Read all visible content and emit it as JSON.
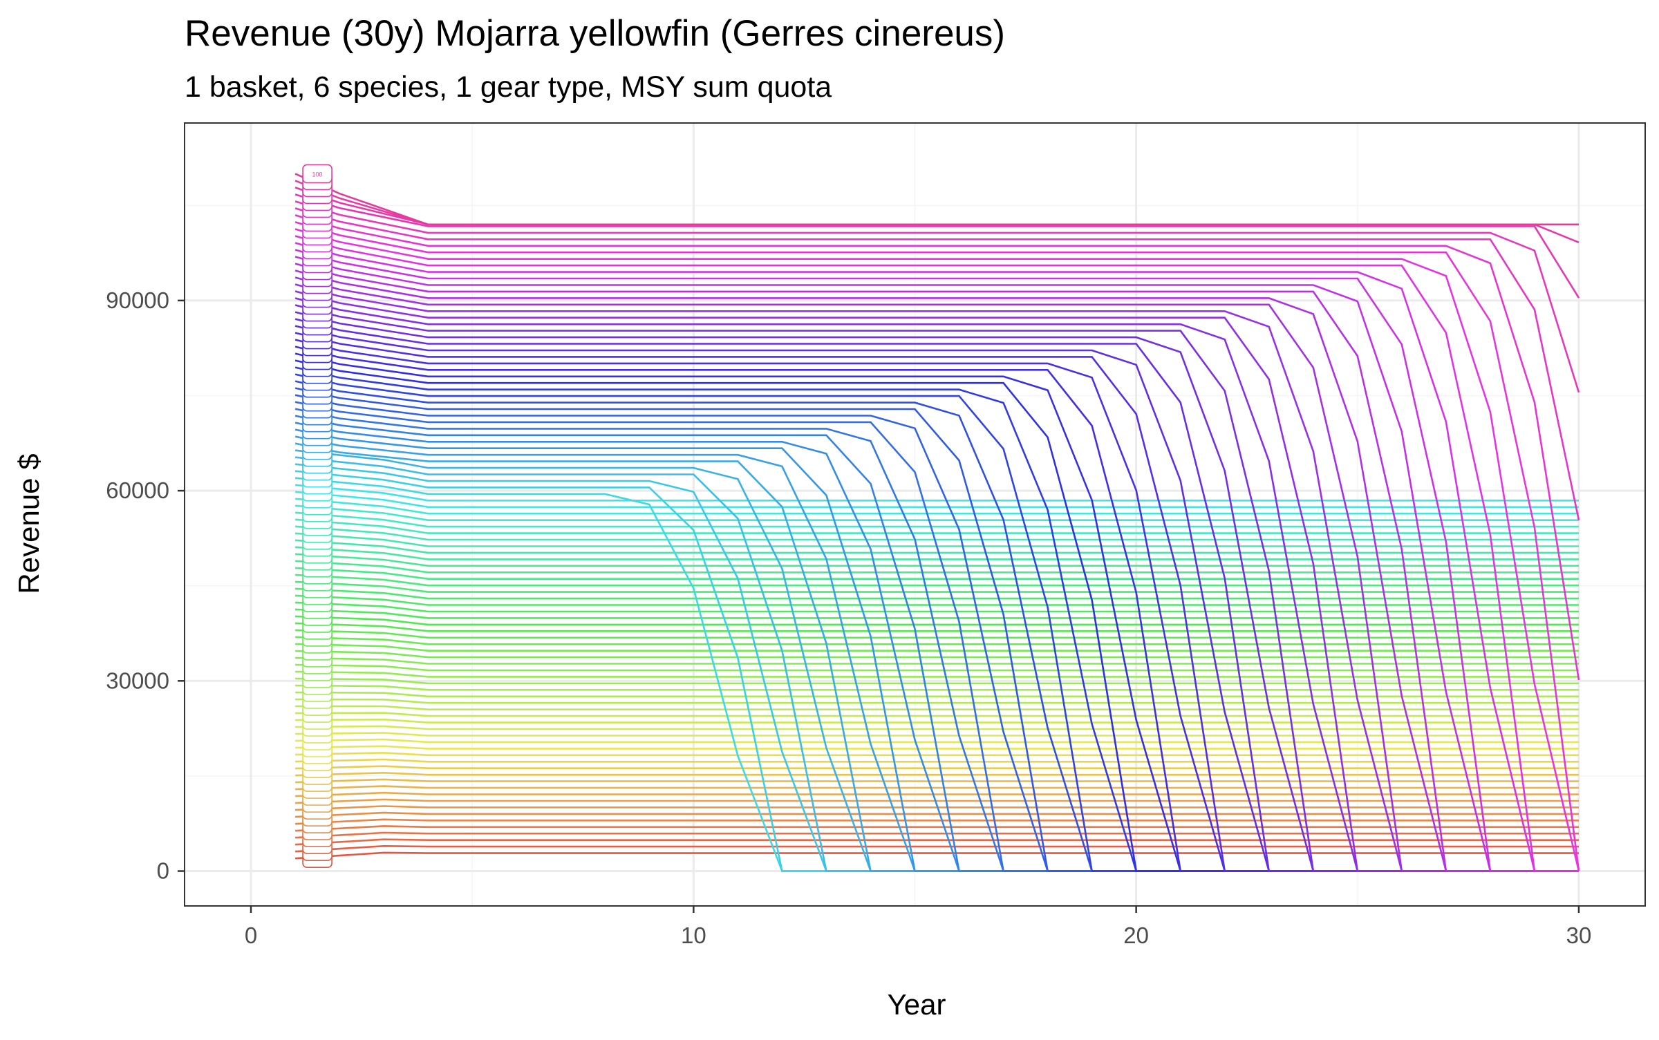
{
  "chart_data": {
    "type": "line",
    "title": "Revenue (30y) Mojarra yellowfin (Gerres cinereus)",
    "subtitle": "1 basket, 6 species, 1 gear type, MSY sum quota",
    "xlabel": "Year",
    "ylabel": "Revenue $",
    "xlim": [
      -1.5,
      31.5
    ],
    "ylim": [
      -5500,
      118000
    ],
    "x_ticks": [
      0,
      10,
      20,
      30
    ],
    "x_tick_labels": [
      "0",
      "10",
      "20",
      "30"
    ],
    "y_ticks": [
      0,
      30000,
      60000,
      90000
    ],
    "y_tick_labels": [
      "0",
      "30000",
      "60000",
      "90000"
    ],
    "grid": true,
    "legend": "none",
    "series_count": 100,
    "series_start_year": 1,
    "series_end_year": 30,
    "series_labels_year": 1,
    "visible_series_label": "100",
    "series_palette": "hue",
    "series_note": "100 effort scenarios; each line is one scenario's revenue by year, labelled with its scenario number at year 1",
    "line_color_range": [
      "#F8766D",
      "#FF61C3"
    ],
    "colors": {
      "axis": "#333333",
      "grid_major": "#ebebeb",
      "grid_minor": "#f5f5f5",
      "tick_text": "#4d4d4d"
    }
  }
}
